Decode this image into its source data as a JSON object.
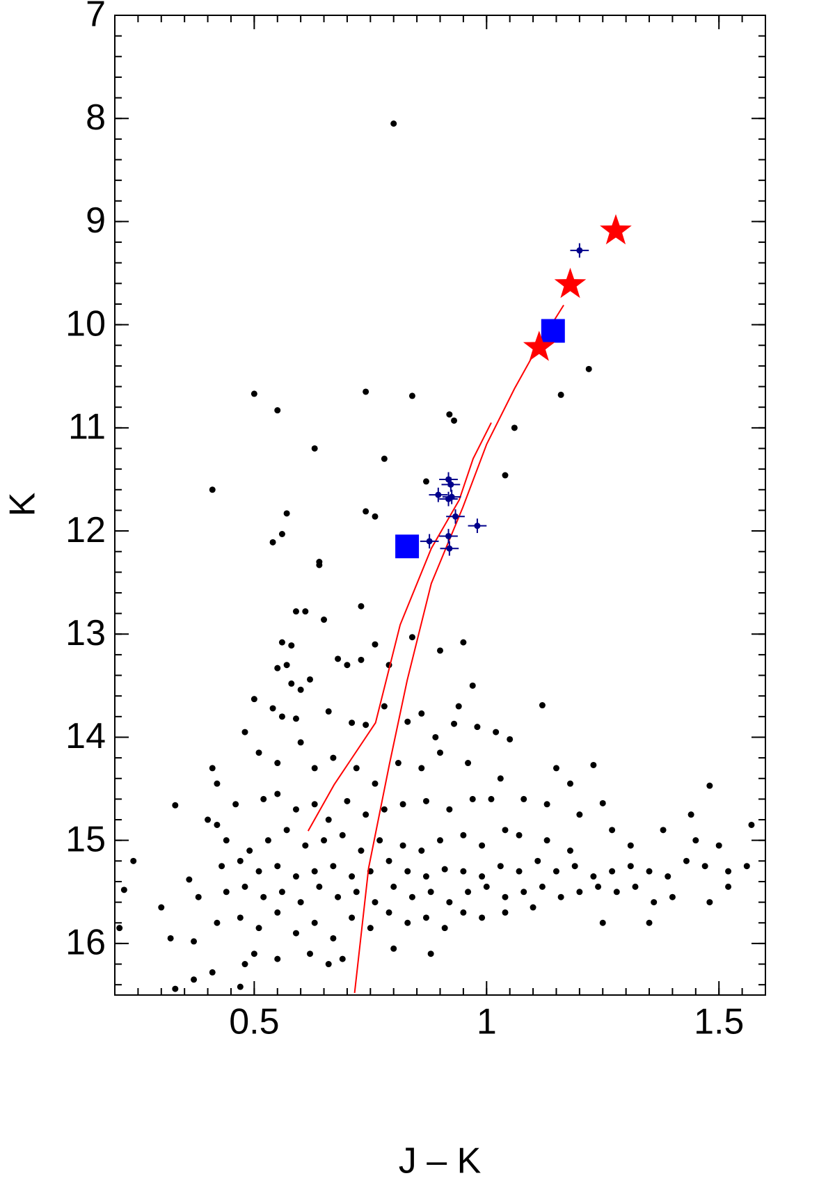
{
  "chart_data": {
    "type": "scatter",
    "xlabel": "J – K",
    "ylabel": "K",
    "xlim": [
      0.2,
      1.6
    ],
    "ylim": [
      16.5,
      7
    ],
    "xticks": [
      0.5,
      1,
      1.5
    ],
    "yticks": [
      7,
      8,
      9,
      10,
      11,
      12,
      13,
      14,
      15,
      16
    ],
    "x_minor_step": 0.05,
    "y_minor_step": 0.2,
    "series": [
      {
        "marker": "dot",
        "color": "#000000",
        "x": [
          0.8,
          0.5,
          0.55,
          0.74,
          0.84,
          0.92,
          0.93,
          1.16,
          1.22,
          1.06,
          0.63,
          0.78,
          0.41,
          1.04,
          0.87,
          0.74,
          0.76,
          0.57,
          0.56,
          0.54,
          0.64,
          0.64,
          0.73,
          0.59,
          0.61,
          0.65,
          0.56,
          0.58,
          0.57,
          0.55,
          0.58,
          0.6,
          0.62,
          0.68,
          0.7,
          0.73,
          0.76,
          0.79,
          0.84,
          0.9,
          0.95,
          0.97,
          0.94,
          0.5,
          0.54,
          0.56,
          0.59,
          0.66,
          0.71,
          0.74,
          0.78,
          0.83,
          0.86,
          0.89,
          0.93,
          0.98,
          1.02,
          1.05,
          1.12,
          0.48,
          0.51,
          0.55,
          0.6,
          0.63,
          0.67,
          0.72,
          0.76,
          0.81,
          0.86,
          0.9,
          0.96,
          1.03,
          1.15,
          1.18,
          1.23,
          0.41,
          0.42,
          0.46,
          0.52,
          0.55,
          0.59,
          0.63,
          0.66,
          0.7,
          0.74,
          0.78,
          0.82,
          0.87,
          0.92,
          0.97,
          1.01,
          1.08,
          1.13,
          1.2,
          1.25,
          1.44,
          1.48,
          0.33,
          0.4,
          0.42,
          0.44,
          0.49,
          0.53,
          0.57,
          0.61,
          0.65,
          0.69,
          0.73,
          0.77,
          0.82,
          0.86,
          0.9,
          0.95,
          0.99,
          1.04,
          1.07,
          1.13,
          1.18,
          1.27,
          1.31,
          1.38,
          1.45,
          1.5,
          1.57,
          0.24,
          0.43,
          0.47,
          0.51,
          0.55,
          0.59,
          0.63,
          0.67,
          0.71,
          0.75,
          0.79,
          0.83,
          0.87,
          0.91,
          0.95,
          0.99,
          1.03,
          1.07,
          1.11,
          1.15,
          1.19,
          1.23,
          1.27,
          1.31,
          1.35,
          1.39,
          1.43,
          1.47,
          1.52,
          1.56,
          0.22,
          0.3,
          0.36,
          0.38,
          0.44,
          0.48,
          0.52,
          0.56,
          0.6,
          0.64,
          0.68,
          0.72,
          0.76,
          0.8,
          0.84,
          0.88,
          0.92,
          0.96,
          1.0,
          1.04,
          1.08,
          1.12,
          1.16,
          1.2,
          1.24,
          1.28,
          1.32,
          1.36,
          1.4,
          1.48,
          1.52,
          0.21,
          0.32,
          0.37,
          0.42,
          0.47,
          0.51,
          0.55,
          0.59,
          0.63,
          0.67,
          0.71,
          0.75,
          0.79,
          0.83,
          0.87,
          0.91,
          0.95,
          0.99,
          1.04,
          1.1,
          1.25,
          1.35,
          0.48,
          0.5,
          0.55,
          0.62,
          0.66,
          0.69,
          0.8,
          0.88,
          0.41,
          0.37,
          0.33,
          0.47
        ],
        "y": [
          8.05,
          10.67,
          10.83,
          10.65,
          10.69,
          10.87,
          10.93,
          10.68,
          10.43,
          11.0,
          11.2,
          11.3,
          11.6,
          11.46,
          11.52,
          11.81,
          11.86,
          11.83,
          12.03,
          12.11,
          12.3,
          12.33,
          12.73,
          12.78,
          12.78,
          12.86,
          13.08,
          13.11,
          13.3,
          13.33,
          13.48,
          13.54,
          13.44,
          13.24,
          13.3,
          13.25,
          13.1,
          13.3,
          13.03,
          13.16,
          13.08,
          13.5,
          13.7,
          13.63,
          13.72,
          13.8,
          13.82,
          13.75,
          13.86,
          13.88,
          13.7,
          13.85,
          13.77,
          14.0,
          13.87,
          13.9,
          13.95,
          14.02,
          13.69,
          13.95,
          14.15,
          14.25,
          14.05,
          14.3,
          14.2,
          14.3,
          14.45,
          14.25,
          14.3,
          14.15,
          14.25,
          14.4,
          14.3,
          14.45,
          14.27,
          14.3,
          14.45,
          14.65,
          14.6,
          14.55,
          14.7,
          14.65,
          14.8,
          14.62,
          14.75,
          14.7,
          14.65,
          14.62,
          14.7,
          14.6,
          14.6,
          14.6,
          14.65,
          14.75,
          14.64,
          14.75,
          14.47,
          14.66,
          14.8,
          14.85,
          15.0,
          15.1,
          15.0,
          14.9,
          15.05,
          15.0,
          14.95,
          15.1,
          15.0,
          15.05,
          15.1,
          15.0,
          14.95,
          15.05,
          14.9,
          14.95,
          15.0,
          15.1,
          14.9,
          15.05,
          14.9,
          15.0,
          15.05,
          14.85,
          15.2,
          15.25,
          15.2,
          15.3,
          15.25,
          15.35,
          15.3,
          15.25,
          15.35,
          15.3,
          15.2,
          15.3,
          15.35,
          15.28,
          15.3,
          15.35,
          15.25,
          15.3,
          15.2,
          15.3,
          15.25,
          15.35,
          15.3,
          15.25,
          15.3,
          15.35,
          15.2,
          15.25,
          15.3,
          15.25,
          15.48,
          15.65,
          15.38,
          15.55,
          15.5,
          15.45,
          15.55,
          15.5,
          15.6,
          15.45,
          15.55,
          15.5,
          15.6,
          15.45,
          15.55,
          15.5,
          15.6,
          15.5,
          15.45,
          15.55,
          15.5,
          15.45,
          15.55,
          15.5,
          15.45,
          15.5,
          15.45,
          15.6,
          15.55,
          15.6,
          15.45,
          15.85,
          15.95,
          15.98,
          15.8,
          15.75,
          15.85,
          15.7,
          15.9,
          15.8,
          15.95,
          15.75,
          15.85,
          15.7,
          15.8,
          15.75,
          15.85,
          15.7,
          15.75,
          15.7,
          15.65,
          15.8,
          15.8,
          16.2,
          16.1,
          16.15,
          16.1,
          16.2,
          16.15,
          16.05,
          16.1,
          16.28,
          16.35,
          16.44,
          16.42
        ]
      },
      {
        "marker": "line",
        "color": "#ff0000",
        "x": [
          0.616,
          0.672,
          0.761,
          0.814,
          0.881,
          0.941,
          0.971,
          1.01
        ],
        "y": [
          14.91,
          14.46,
          13.86,
          12.91,
          12.17,
          11.7,
          11.3,
          10.95
        ]
      },
      {
        "marker": "line",
        "color": "#ff0000",
        "x": [
          0.716,
          0.746,
          0.791,
          0.829,
          0.881,
          0.949,
          1.0,
          1.06,
          1.113,
          1.166
        ],
        "y": [
          16.48,
          15.27,
          14.26,
          13.45,
          12.51,
          11.77,
          11.16,
          10.62,
          10.19,
          9.81
        ]
      },
      {
        "marker": "errorbar",
        "color": "#00008b",
        "x": [
          1.2,
          0.896,
          0.918,
          0.923,
          0.918,
          0.925,
          0.933,
          0.98,
          0.877,
          0.918,
          0.92
        ],
        "y": [
          9.28,
          11.65,
          11.5,
          11.55,
          11.69,
          11.67,
          11.86,
          11.95,
          12.1,
          12.05,
          12.17
        ],
        "xerr": [
          0.02,
          0.02,
          0.02,
          0.02,
          0.02,
          0.02,
          0.02,
          0.02,
          0.02,
          0.02,
          0.02
        ],
        "yerr": [
          0.07,
          0.07,
          0.07,
          0.07,
          0.07,
          0.07,
          0.07,
          0.07,
          0.07,
          0.07,
          0.07
        ]
      },
      {
        "marker": "square",
        "color": "#0000ff",
        "x": [
          0.829,
          1.143
        ],
        "y": [
          12.15,
          10.06
        ]
      },
      {
        "marker": "star",
        "color": "#ff0000",
        "x": [
          1.113,
          1.18,
          1.278
        ],
        "y": [
          10.22,
          9.61,
          9.09
        ]
      }
    ]
  }
}
